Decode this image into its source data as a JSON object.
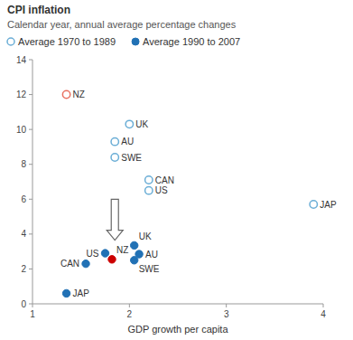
{
  "chart_data": {
    "type": "scatter",
    "title": "CPI inflation",
    "subtitle": "Calendar year, annual average percentage changes",
    "xlabel": "GDP growth per capita",
    "xlim": [
      1,
      4
    ],
    "ylim": [
      0,
      14
    ],
    "xticks": [
      1,
      2,
      3,
      4
    ],
    "yticks": [
      0,
      2,
      4,
      6,
      8,
      10,
      12,
      14
    ],
    "grid": false,
    "legend": "top",
    "series": [
      {
        "name": "Average 1970 to 1989",
        "color": "#6baed6",
        "marker": "hollow",
        "x": [
          1.35,
          2.0,
          1.85,
          1.85,
          2.2,
          2.2,
          3.9
        ],
        "values": [
          12.0,
          10.3,
          9.3,
          8.4,
          7.1,
          6.5,
          5.7
        ],
        "labels": [
          "NZ",
          "UK",
          "AU",
          "SWE",
          "CAN",
          "US",
          "JAP"
        ],
        "colors": [
          "#e87060",
          "#6baed6",
          "#6baed6",
          "#6baed6",
          "#6baed6",
          "#6baed6",
          "#6baed6"
        ]
      },
      {
        "name": "Average 1990 to 2007",
        "color": "#2171b5",
        "marker": "filled",
        "x": [
          1.35,
          1.55,
          1.75,
          1.82,
          2.05,
          2.1,
          2.05
        ],
        "values": [
          0.6,
          2.3,
          2.9,
          2.55,
          3.35,
          2.85,
          2.5
        ],
        "labels": [
          "JAP",
          "CAN",
          "US",
          "NZ",
          "UK",
          "AU",
          "SWE"
        ],
        "colors": [
          "#2171b5",
          "#2171b5",
          "#2171b5",
          "#cc0000",
          "#2171b5",
          "#2171b5",
          "#2171b5"
        ]
      }
    ],
    "annotations": [
      {
        "type": "arrow",
        "x": 1.85,
        "y_start": 6.0,
        "y_end": 3.65
      }
    ]
  }
}
